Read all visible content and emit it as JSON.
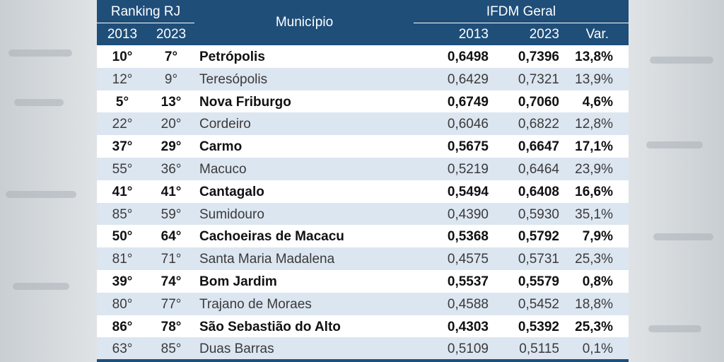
{
  "header": {
    "ranking_label": "Ranking RJ",
    "year_2013": "2013",
    "year_2023": "2023",
    "municipio_label": "Município",
    "ifdm_label": "IFDM Geral",
    "ifdm_2013": "2013",
    "ifdm_2023": "2023",
    "var_label": "Var."
  },
  "rows": [
    {
      "r2013": "10°",
      "r2023": "7°",
      "municipio": "Petrópolis",
      "v2013": "0,6498",
      "v2023": "0,7396",
      "var": "13,8%",
      "bold": true
    },
    {
      "r2013": "12°",
      "r2023": "9°",
      "municipio": "Teresópolis",
      "v2013": "0,6429",
      "v2023": "0,7321",
      "var": "13,9%",
      "bold": false
    },
    {
      "r2013": "5°",
      "r2023": "13°",
      "municipio": "Nova Friburgo",
      "v2013": "0,6749",
      "v2023": "0,7060",
      "var": "4,6%",
      "bold": true
    },
    {
      "r2013": "22°",
      "r2023": "20°",
      "municipio": "Cordeiro",
      "v2013": "0,6046",
      "v2023": "0,6822",
      "var": "12,8%",
      "bold": false
    },
    {
      "r2013": "37°",
      "r2023": "29°",
      "municipio": "Carmo",
      "v2013": "0,5675",
      "v2023": "0,6647",
      "var": "17,1%",
      "bold": true
    },
    {
      "r2013": "55°",
      "r2023": "36°",
      "municipio": "Macuco",
      "v2013": "0,5219",
      "v2023": "0,6464",
      "var": "23,9%",
      "bold": false
    },
    {
      "r2013": "41°",
      "r2023": "41°",
      "municipio": "Cantagalo",
      "v2013": "0,5494",
      "v2023": "0,6408",
      "var": "16,6%",
      "bold": true
    },
    {
      "r2013": "85°",
      "r2023": "59°",
      "municipio": "Sumidouro",
      "v2013": "0,4390",
      "v2023": "0,5930",
      "var": "35,1%",
      "bold": false
    },
    {
      "r2013": "50°",
      "r2023": "64°",
      "municipio": "Cachoeiras de Macacu",
      "v2013": "0,5368",
      "v2023": "0,5792",
      "var": "7,9%",
      "bold": true
    },
    {
      "r2013": "81°",
      "r2023": "71°",
      "municipio": "Santa Maria Madalena",
      "v2013": "0,4575",
      "v2023": "0,5731",
      "var": "25,3%",
      "bold": false
    },
    {
      "r2013": "39°",
      "r2023": "74°",
      "municipio": "Bom Jardim",
      "v2013": "0,5537",
      "v2023": "0,5579",
      "var": "0,8%",
      "bold": true
    },
    {
      "r2013": "80°",
      "r2023": "77°",
      "municipio": "Trajano de Moraes",
      "v2013": "0,4588",
      "v2023": "0,5452",
      "var": "18,8%",
      "bold": false
    },
    {
      "r2013": "86°",
      "r2023": "78°",
      "municipio": "São Sebastião do Alto",
      "v2013": "0,4303",
      "v2023": "0,5392",
      "var": "25,3%",
      "bold": true
    },
    {
      "r2013": "63°",
      "r2023": "85°",
      "municipio": "Duas Barras",
      "v2013": "0,5109",
      "v2023": "0,5115",
      "var": "0,1%",
      "bold": false
    }
  ]
}
